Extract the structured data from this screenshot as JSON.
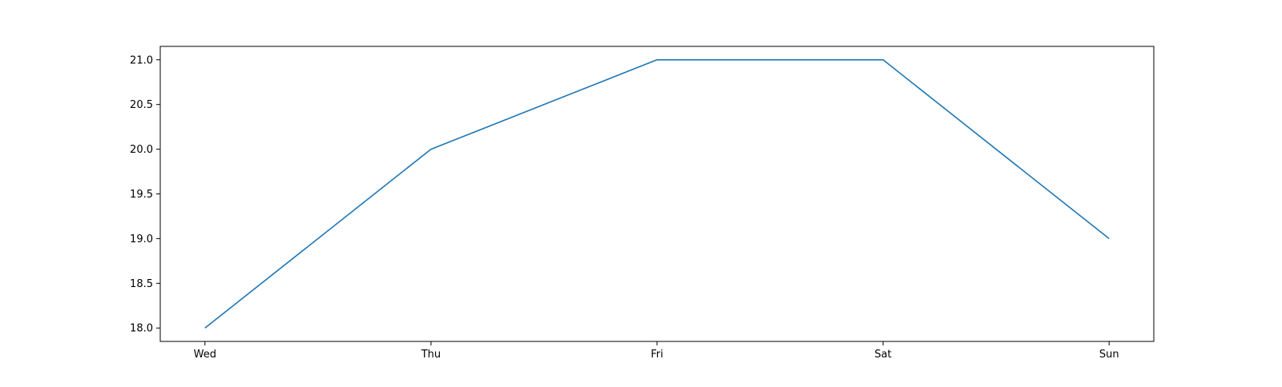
{
  "chart_data": {
    "type": "line",
    "categories": [
      "Wed",
      "Thu",
      "Fri",
      "Sat",
      "Sun"
    ],
    "series": [
      {
        "values": [
          18,
          20,
          21,
          21,
          19
        ],
        "color": "#1f77b4"
      }
    ],
    "ylim": [
      17.85,
      21.15
    ],
    "yticks": [
      18.0,
      18.5,
      19.0,
      19.5,
      20.0,
      20.5,
      21.0
    ],
    "grid": false,
    "legend": "none"
  }
}
